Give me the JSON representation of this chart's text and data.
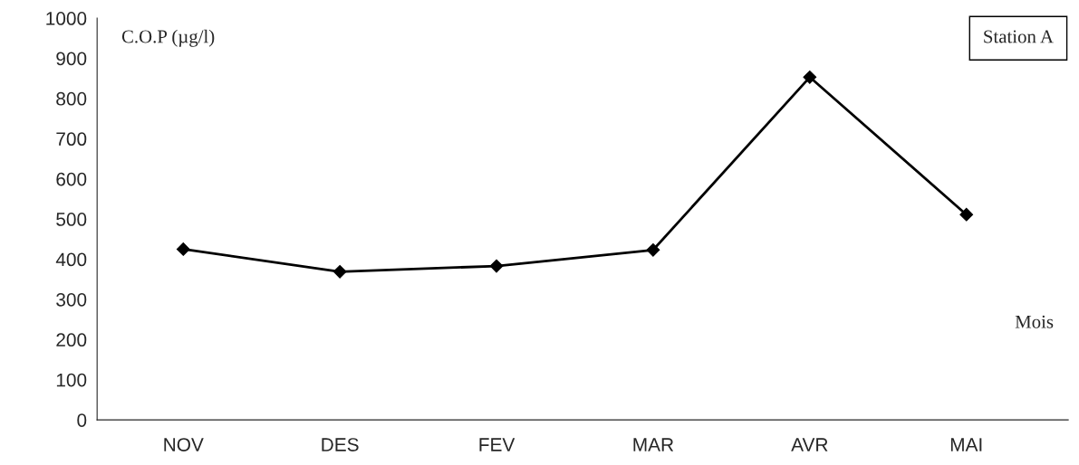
{
  "chart_data": {
    "type": "line",
    "ylabel": "C.O.P (µg/l)",
    "xlabel": "Mois",
    "annotations": [
      "Station A"
    ],
    "categories": [
      "NOV",
      "DES",
      "FEV",
      "MAR",
      "AVR",
      "MAI"
    ],
    "series": [
      {
        "color": "#000000",
        "values": [
          425,
          369,
          383,
          423,
          853,
          511
        ]
      }
    ],
    "ylim": [
      0,
      1000
    ],
    "yticks": [
      0,
      100,
      200,
      300,
      400,
      500,
      600,
      700,
      800,
      900,
      1000
    ],
    "marker": "diamond",
    "line_style": "solid",
    "grid": false
  }
}
